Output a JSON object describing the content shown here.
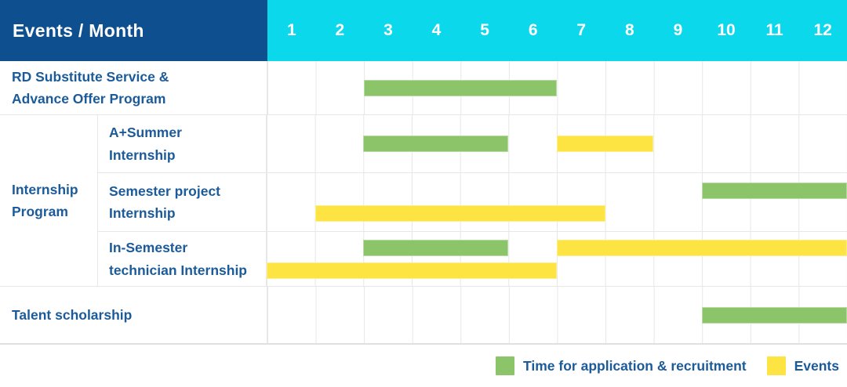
{
  "header": {
    "title": "Events / Month"
  },
  "colors": {
    "header_bg": "#0e508f",
    "months_bg": "#0cd8ec",
    "application": "#8cc569",
    "event": "#fde442",
    "label_text": "#1c5b99",
    "header_text": "#ffffff",
    "grid_line": "#e7e7e7"
  },
  "chart_data": {
    "type": "gantt",
    "unit": "month",
    "axis_range": [
      1,
      12
    ],
    "months": [
      "1",
      "2",
      "3",
      "4",
      "5",
      "6",
      "7",
      "8",
      "9",
      "10",
      "11",
      "12"
    ],
    "group_label": "Internship\nProgram",
    "rows": [
      {
        "label": "RD Substitute Service &\nAdvance Offer Program",
        "group": null,
        "bars": [
          {
            "type": "application",
            "start": 3,
            "end": 6,
            "line": 0
          }
        ]
      },
      {
        "label": "A+Summer\nInternship",
        "group": "Internship Program",
        "bars": [
          {
            "type": "application",
            "start": 3,
            "end": 5,
            "line": 0
          },
          {
            "type": "event",
            "start": 7,
            "end": 8,
            "line": 0
          }
        ]
      },
      {
        "label": "Semester project\nInternship",
        "group": "Internship Program",
        "bars": [
          {
            "type": "application",
            "start": 10,
            "end": 12,
            "line": 0
          },
          {
            "type": "event",
            "start": 2,
            "end": 7,
            "line": 1
          }
        ]
      },
      {
        "label": "In-Semester\ntechnician Internship",
        "group": "Internship Program",
        "bars": [
          {
            "type": "application",
            "start": 3,
            "end": 5,
            "line": 0
          },
          {
            "type": "event",
            "start": 7,
            "end": 12,
            "line": 0
          },
          {
            "type": "event",
            "start": 1,
            "end": 6,
            "line": 1
          }
        ]
      },
      {
        "label": "Talent scholarship",
        "group": null,
        "bars": [
          {
            "type": "application",
            "start": 10,
            "end": 12,
            "line": 0
          }
        ]
      }
    ],
    "legend": [
      {
        "key": "application",
        "label": "Time for application & recruitment"
      },
      {
        "key": "event",
        "label": "Events"
      }
    ]
  }
}
